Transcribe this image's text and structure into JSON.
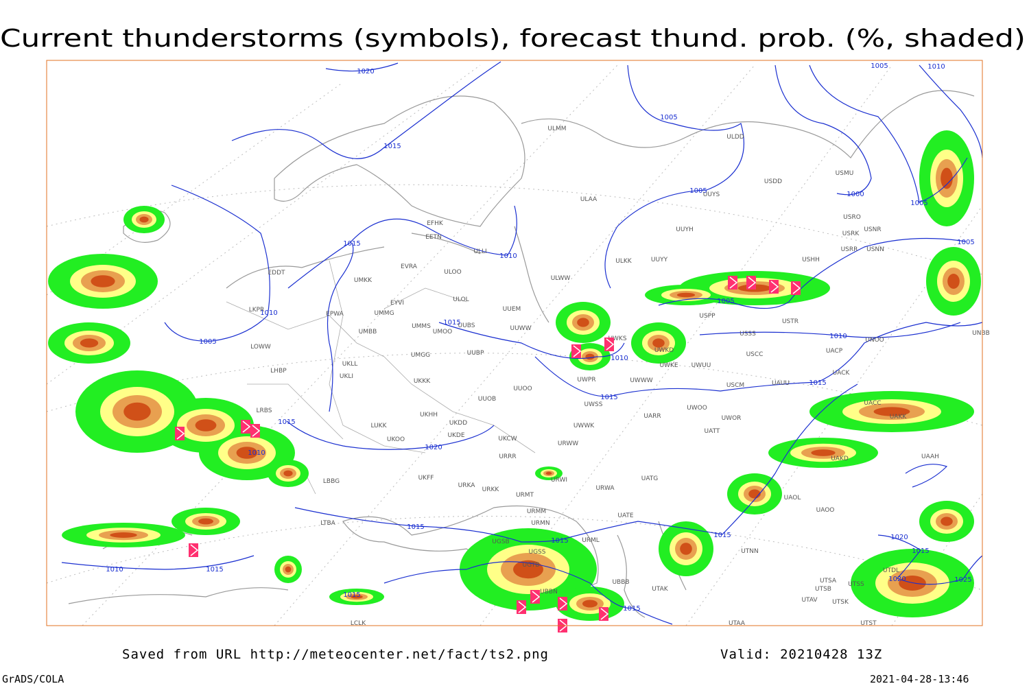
{
  "title": "Current thunderstorms (symbols), forecast thund. prob. (%, shaded)",
  "footer": {
    "source": "Saved from URL http://meteocenter.net/fact/ts2.png",
    "valid": "Valid: 20210428 13Z",
    "software": "GrADS/COLA",
    "timestamp": "2021-04-28-13:46"
  },
  "isobars": [
    "1020",
    "1015",
    "1005",
    "1005",
    "1010",
    "1005",
    "1000",
    "1005",
    "1005",
    "1015",
    "1010",
    "1010",
    "1005",
    "1015",
    "1005",
    "1010",
    "1010",
    "1015",
    "1015",
    "1015",
    "1010",
    "1020",
    "1015",
    "1015",
    "1015",
    "1010",
    "1015",
    "1015",
    "1015",
    "1020",
    "1015",
    "1020",
    "1025"
  ],
  "stations": [
    "ULMM",
    "ULDD",
    "USMU",
    "USDD",
    "ULAA",
    "UUYS",
    "USRO",
    "USRK",
    "USNR",
    "USRR",
    "USNN",
    "EFHK",
    "EETN",
    "ULLI",
    "UUYH",
    "UUYY",
    "ULKK",
    "USHH",
    "EVRA",
    "ULOO",
    "EDDT",
    "UMKK",
    "ULWW",
    "ULOL",
    "EYVI",
    "LKPR",
    "UUEM",
    "EPWA",
    "UMMG",
    "USPP",
    "USTR",
    "UMMS",
    "UMOO",
    "UUBS",
    "UUWW",
    "UWKS",
    "UMBB",
    "USSS",
    "UNOO",
    "UNBB",
    "LOWW",
    "UWKD",
    "UUBP",
    "UACP",
    "USCC",
    "UWKE",
    "UWUU",
    "UMGG",
    "UKLL",
    "UKLI",
    "LHBP",
    "UWWW",
    "UWPR",
    "UACK",
    "USCM",
    "UAUU",
    "UKKK",
    "UUOO",
    "UUOB",
    "UWSS",
    "UACC",
    "UAKK",
    "LRBS",
    "UKHH",
    "UKDD",
    "UWOO",
    "UARR",
    "UWOR",
    "LUKK",
    "UKDE",
    "UWWK",
    "UATT",
    "UKOO",
    "UKCW",
    "URWW",
    "URRR",
    "UAKD",
    "UAAH",
    "LBBG",
    "UKFF",
    "URKA",
    "UATG",
    "URKK",
    "URWI",
    "URWA",
    "URMT",
    "UAOL",
    "UAOO",
    "UATE",
    "URMM",
    "LTBA",
    "URMN",
    "URML",
    "UGSB",
    "UTNN",
    "UGSS",
    "UGTB",
    "UBBB",
    "UTDL",
    "UTSA",
    "UTSB",
    "UTSS",
    "UTAK",
    "UBBN",
    "UTAV",
    "UTSK",
    "LCLK",
    "UTAA",
    "UTST"
  ]
}
